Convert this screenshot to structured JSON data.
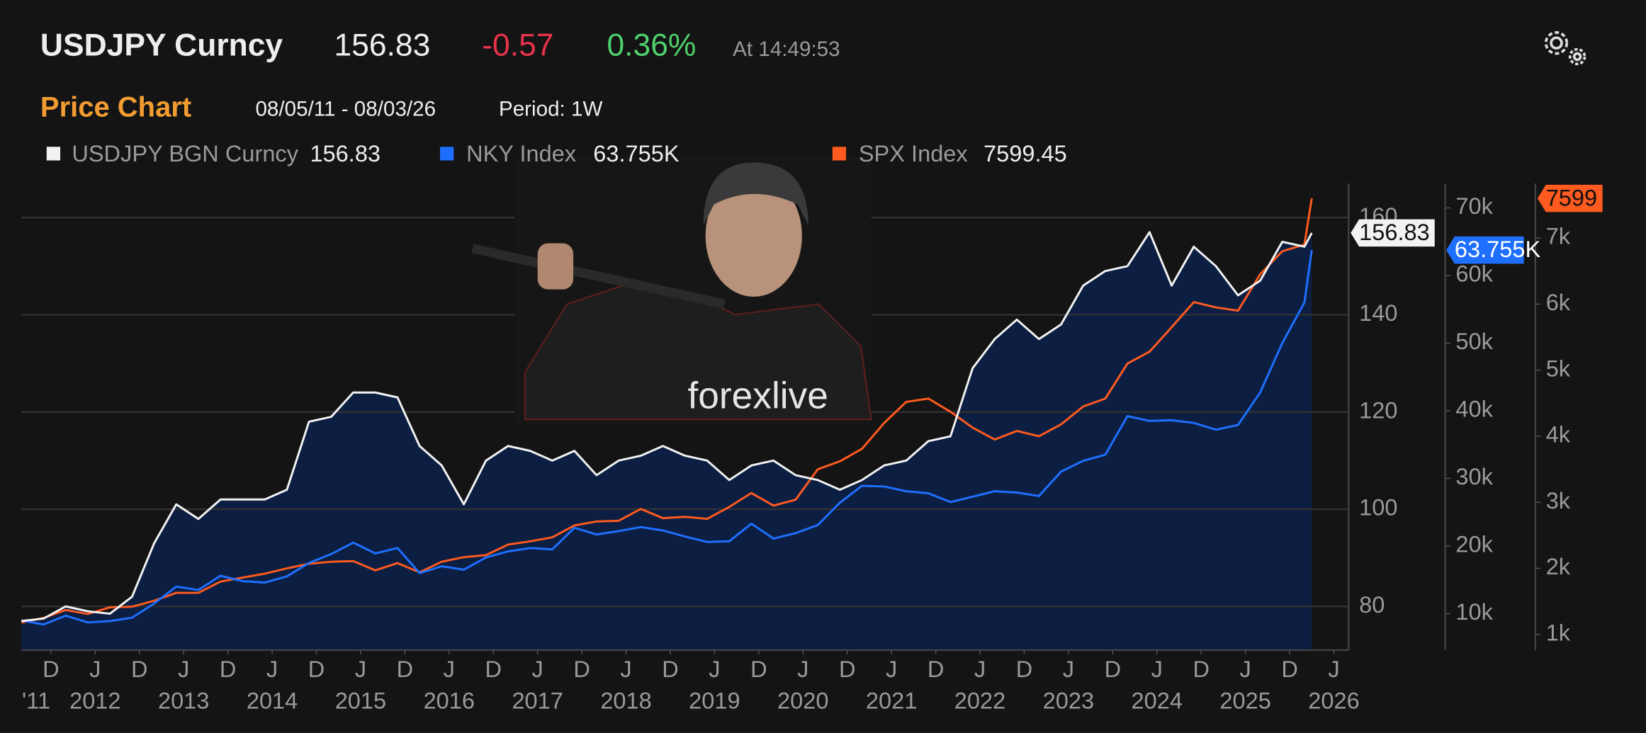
{
  "header": {
    "ticker": "USDJPY Curncy",
    "price": "156.83",
    "change": "-0.57",
    "change_pct": "0.36%",
    "time": "At 14:49:53",
    "chart_label": "Price Chart",
    "date_range": "08/05/11 - 08/03/26",
    "period": "Period: 1W"
  },
  "overlay": {
    "watermark": "forexlive"
  },
  "chart_data": {
    "type": "line",
    "x": [
      "2011-08",
      "2011-11",
      "2012-02",
      "2012-05",
      "2012-08",
      "2012-11",
      "2013-02",
      "2013-05",
      "2013-08",
      "2013-11",
      "2014-02",
      "2014-05",
      "2014-08",
      "2014-11",
      "2015-02",
      "2015-05",
      "2015-08",
      "2015-11",
      "2016-02",
      "2016-05",
      "2016-08",
      "2016-11",
      "2017-02",
      "2017-05",
      "2017-08",
      "2017-11",
      "2018-02",
      "2018-05",
      "2018-08",
      "2018-11",
      "2019-02",
      "2019-05",
      "2019-08",
      "2019-11",
      "2020-02",
      "2020-05",
      "2020-08",
      "2020-11",
      "2021-02",
      "2021-05",
      "2021-08",
      "2021-11",
      "2022-02",
      "2022-05",
      "2022-08",
      "2022-11",
      "2023-02",
      "2023-05",
      "2023-08",
      "2023-11",
      "2024-02",
      "2024-05",
      "2024-08",
      "2024-11",
      "2025-02",
      "2025-05",
      "2025-08",
      "2025-11",
      "2026-02",
      "2026-03"
    ],
    "xlim": [
      "2011-08",
      "2026-08"
    ],
    "xticks": [
      {
        "value": "2011-12",
        "label": "D"
      },
      {
        "value": "2012-06",
        "label": "J"
      },
      {
        "value": "2012-12",
        "label": "D"
      },
      {
        "value": "2013-06",
        "label": "J"
      },
      {
        "value": "2013-12",
        "label": "D"
      },
      {
        "value": "2014-06",
        "label": "J"
      },
      {
        "value": "2014-12",
        "label": "D"
      },
      {
        "value": "2015-06",
        "label": "J"
      },
      {
        "value": "2015-12",
        "label": "D"
      },
      {
        "value": "2016-06",
        "label": "J"
      },
      {
        "value": "2016-12",
        "label": "D"
      },
      {
        "value": "2017-06",
        "label": "J"
      },
      {
        "value": "2017-12",
        "label": "D"
      },
      {
        "value": "2018-06",
        "label": "J"
      },
      {
        "value": "2018-12",
        "label": "D"
      },
      {
        "value": "2019-06",
        "label": "J"
      },
      {
        "value": "2019-12",
        "label": "D"
      },
      {
        "value": "2020-06",
        "label": "J"
      },
      {
        "value": "2020-12",
        "label": "D"
      },
      {
        "value": "2021-06",
        "label": "J"
      },
      {
        "value": "2021-12",
        "label": "D"
      },
      {
        "value": "2022-06",
        "label": "J"
      },
      {
        "value": "2022-12",
        "label": "D"
      },
      {
        "value": "2023-06",
        "label": "J"
      },
      {
        "value": "2023-12",
        "label": "D"
      },
      {
        "value": "2024-06",
        "label": "J"
      },
      {
        "value": "2024-12",
        "label": "D"
      },
      {
        "value": "2025-06",
        "label": "J"
      },
      {
        "value": "2025-12",
        "label": "D"
      },
      {
        "value": "2026-06",
        "label": "J"
      }
    ],
    "xyearticks": [
      {
        "value": "2011-10",
        "label": "'11"
      },
      {
        "value": "2012-06",
        "label": "2012"
      },
      {
        "value": "2013-06",
        "label": "2013"
      },
      {
        "value": "2014-06",
        "label": "2014"
      },
      {
        "value": "2015-06",
        "label": "2015"
      },
      {
        "value": "2016-06",
        "label": "2016"
      },
      {
        "value": "2017-06",
        "label": "2017"
      },
      {
        "value": "2018-06",
        "label": "2018"
      },
      {
        "value": "2019-06",
        "label": "2019"
      },
      {
        "value": "2020-06",
        "label": "2020"
      },
      {
        "value": "2021-06",
        "label": "2021"
      },
      {
        "value": "2022-06",
        "label": "2022"
      },
      {
        "value": "2023-06",
        "label": "2023"
      },
      {
        "value": "2024-06",
        "label": "2024"
      },
      {
        "value": "2025-06",
        "label": "2025"
      },
      {
        "value": "2026-06",
        "label": "2026"
      }
    ],
    "ylim": [
      71,
      167
    ],
    "yticks": [
      80,
      100,
      120,
      140,
      160
    ],
    "y2lim": [
      4600,
      73600
    ],
    "y2ticks": [
      {
        "value": 10000,
        "label": "10k"
      },
      {
        "value": 20000,
        "label": "20k"
      },
      {
        "value": 30000,
        "label": "30k"
      },
      {
        "value": 40000,
        "label": "40k"
      },
      {
        "value": 50000,
        "label": "50k"
      },
      {
        "value": 60000,
        "label": "60k"
      },
      {
        "value": 70000,
        "label": "70k"
      }
    ],
    "y3lim": [
      762,
      7825
    ],
    "y3ticks": [
      {
        "value": 1000,
        "label": "1k"
      },
      {
        "value": 2000,
        "label": "2k"
      },
      {
        "value": 3000,
        "label": "3k"
      },
      {
        "value": 4000,
        "label": "4k"
      },
      {
        "value": 5000,
        "label": "5k"
      },
      {
        "value": 6000,
        "label": "6k"
      },
      {
        "value": 7000,
        "label": "7k"
      }
    ],
    "grid": true,
    "series": [
      {
        "name": "USDJPY BGN Curncy",
        "legend_value": "156.83",
        "tag_label": "156.83",
        "color": "#f2f2f2",
        "fill_color": "#0c1f42",
        "axis": "y",
        "values": [
          77,
          77.5,
          80,
          79,
          78.5,
          82,
          93,
          101,
          98,
          102,
          102,
          102,
          104,
          118,
          119,
          124,
          124,
          123,
          113,
          109,
          101,
          110,
          113,
          112,
          110,
          112,
          107,
          110,
          111,
          113,
          111,
          110,
          106,
          109,
          110,
          107,
          106,
          104,
          106,
          109,
          110,
          114,
          115,
          129,
          135,
          139,
          135,
          138,
          146,
          149,
          150,
          157,
          146,
          154,
          150,
          144,
          147,
          155,
          154,
          156.83
        ]
      },
      {
        "name": "NKY Index",
        "legend_value": "63.755K",
        "tag_label": "63.755K",
        "color": "#1f6fff",
        "axis": "y2",
        "values": [
          9000,
          8400,
          9700,
          8700,
          8900,
          9400,
          11500,
          14000,
          13500,
          15600,
          14800,
          14600,
          15500,
          17500,
          18800,
          20500,
          18900,
          19700,
          16000,
          17000,
          16500,
          18300,
          19200,
          19700,
          19500,
          22700,
          21700,
          22200,
          22800,
          22300,
          21400,
          20600,
          20700,
          23300,
          21100,
          21900,
          23100,
          26400,
          28900,
          28800,
          28100,
          27800,
          26500,
          27300,
          28100,
          27900,
          27400,
          31000,
          32600,
          33500,
          39200,
          38500,
          38600,
          38200,
          37200,
          37900,
          42700,
          50000,
          56000,
          63755
        ]
      },
      {
        "name": "SPX Index",
        "legend_value": "7599.45",
        "tag_label": "7599",
        "color": "#ff5a1f",
        "axis": "y3",
        "values": [
          1180,
          1250,
          1370,
          1310,
          1410,
          1420,
          1510,
          1630,
          1630,
          1800,
          1860,
          1920,
          2000,
          2070,
          2100,
          2110,
          1970,
          2080,
          1940,
          2100,
          2170,
          2200,
          2360,
          2410,
          2470,
          2650,
          2710,
          2720,
          2900,
          2760,
          2780,
          2750,
          2930,
          3140,
          2950,
          3040,
          3500,
          3620,
          3810,
          4200,
          4520,
          4570,
          4370,
          4130,
          3950,
          4080,
          4000,
          4180,
          4450,
          4570,
          5100,
          5280,
          5650,
          6030,
          5950,
          5900,
          6450,
          6800,
          6900,
          7599.45
        ]
      }
    ]
  }
}
